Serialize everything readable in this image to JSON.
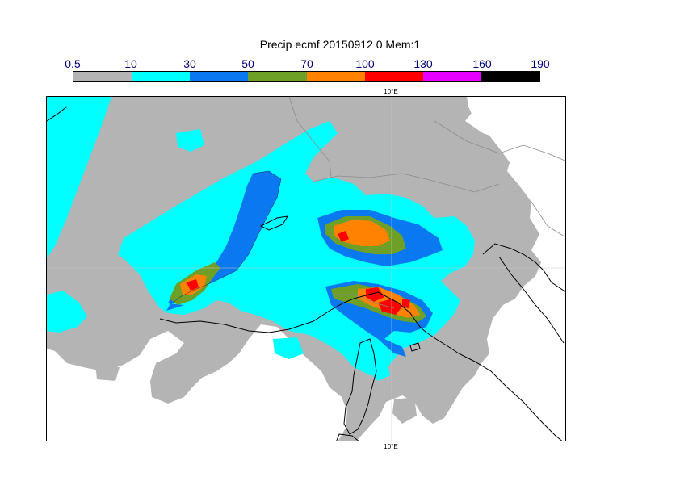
{
  "title": "Precip ecmf 20150912 0 Mem:1",
  "legend": {
    "ticks": [
      "0.5",
      "10",
      "30",
      "50",
      "70",
      "100",
      "130",
      "160",
      "190"
    ],
    "colors": [
      "#b4b4b4",
      "#00ffff",
      "#0a78f0",
      "#6ea028",
      "#ff8200",
      "#ff0000",
      "#e600ff",
      "#000000"
    ]
  },
  "map": {
    "lon_label_top": "10°E",
    "lon_label_bottom": "10°E",
    "palette": {
      "land": "#ffffff",
      "coast": "#000000",
      "border": "#8c8c8c",
      "grid": "#c8c8c8"
    }
  }
}
